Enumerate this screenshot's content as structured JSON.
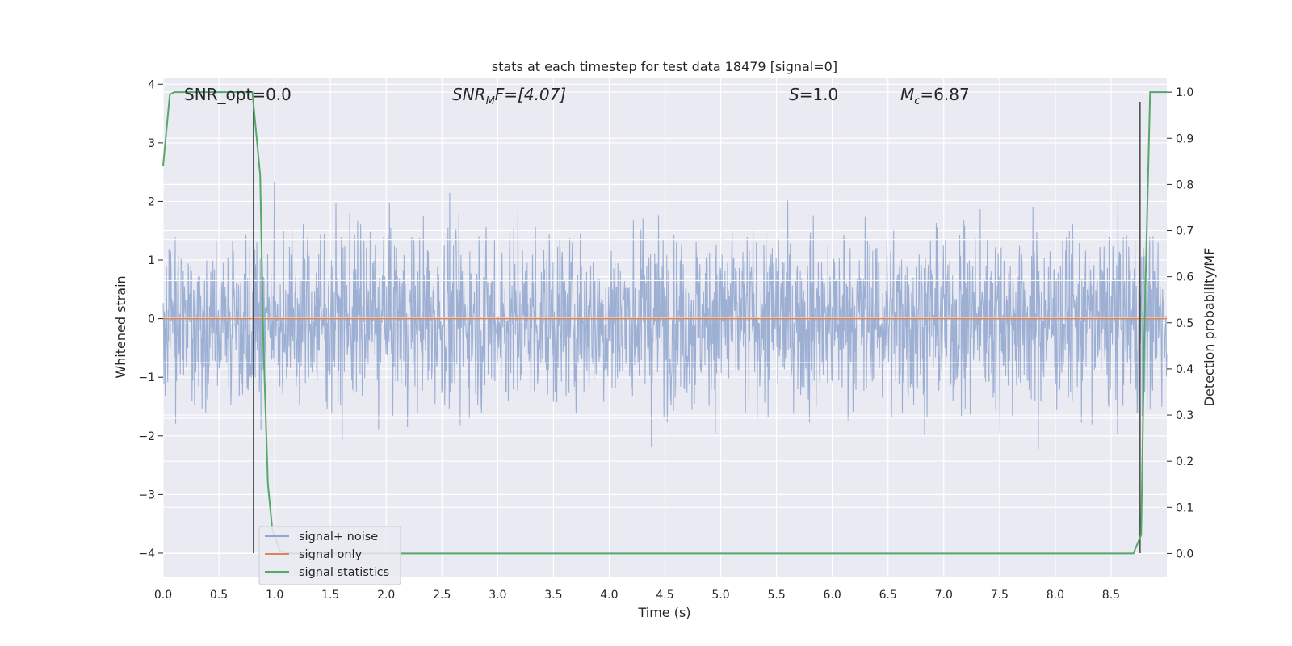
{
  "chart_data": {
    "type": "line",
    "title": "stats at each timestep for test data 18479 [signal=0]",
    "xlabel": "Time (s)",
    "ylabel": "Whitened strain",
    "y2label": "Detection probability/MF",
    "xlim": [
      0.0,
      9.0
    ],
    "ylim": [
      -4.4,
      4.1
    ],
    "y2lim": [
      -0.05,
      1.03
    ],
    "xticks": [
      0.0,
      0.5,
      1.0,
      1.5,
      2.0,
      2.5,
      3.0,
      3.5,
      4.0,
      4.5,
      5.0,
      5.5,
      6.0,
      6.5,
      7.0,
      7.5,
      8.0,
      8.5
    ],
    "xtick_labels": [
      "0.0",
      "0.5",
      "1.0",
      "1.5",
      "2.0",
      "2.5",
      "3.0",
      "3.5",
      "4.0",
      "4.5",
      "5.0",
      "5.5",
      "6.0",
      "6.5",
      "7.0",
      "7.5",
      "8.0",
      "8.5"
    ],
    "yticks": [
      4,
      3,
      2,
      1,
      0,
      -1,
      -2,
      -3,
      -4
    ],
    "ytick_labels": [
      "4",
      "3",
      "2",
      "1",
      "0",
      "−1",
      "−2",
      "−3",
      "−4"
    ],
    "y2ticks": [
      1.0,
      0.9,
      0.8,
      0.7,
      0.6,
      0.5,
      0.4,
      0.3,
      0.2,
      0.1,
      0.0
    ],
    "y2tick_labels": [
      "1.0",
      "0.9",
      "0.8",
      "0.7",
      "0.6",
      "0.5",
      "0.4",
      "0.3",
      "0.2",
      "0.1",
      "0.0"
    ],
    "grid": true,
    "legend_position": "lower-left",
    "annotations": {
      "snr_opt": "SNR_opt=0.0",
      "snr_mf_prefix": "SNR",
      "snr_mf_sub": "M",
      "snr_mf_rest": "F=[4.07]",
      "s_italic": "S",
      "s_rest": "=1.0",
      "mc_italic": "M",
      "mc_sub": "c",
      "mc_rest": "=6.87"
    },
    "series": [
      {
        "name": "signal+ noise",
        "color": "#8fa6cf",
        "axis": "left",
        "kind": "noise",
        "amplitude_envelope": [
          -3.95,
          3.7
        ]
      },
      {
        "name": "signal only",
        "color": "#dd8452",
        "axis": "left",
        "x": [
          0.0,
          9.0
        ],
        "y": [
          0.0,
          0.0
        ]
      },
      {
        "name": "signal statistics",
        "color": "#55a868",
        "axis": "right",
        "x": [
          0.0,
          0.06,
          0.1,
          0.2,
          0.4,
          0.6,
          0.8,
          0.87,
          0.9,
          0.94,
          0.98,
          1.05,
          1.15,
          2.0,
          4.0,
          6.0,
          8.0,
          8.7,
          8.77,
          8.8,
          8.85,
          9.0
        ],
        "y": [
          0.84,
          0.995,
          1.0,
          1.0,
          1.0,
          1.0,
          1.0,
          0.82,
          0.45,
          0.15,
          0.05,
          0.005,
          0.0,
          0.0,
          0.0,
          0.0,
          0.0,
          0.0,
          0.04,
          0.5,
          1.0,
          1.0
        ]
      }
    ],
    "vlines": [
      {
        "x": 0.81,
        "y_from": -4.0,
        "y_to": 3.7,
        "color": "#3b3b3b"
      },
      {
        "x": 8.76,
        "y_from": -4.0,
        "y_to": 3.7,
        "color": "#3b3b3b"
      }
    ],
    "hlines_grey": [
      0.01,
      0.65,
      1.35,
      -0.75,
      -1.7
    ]
  }
}
